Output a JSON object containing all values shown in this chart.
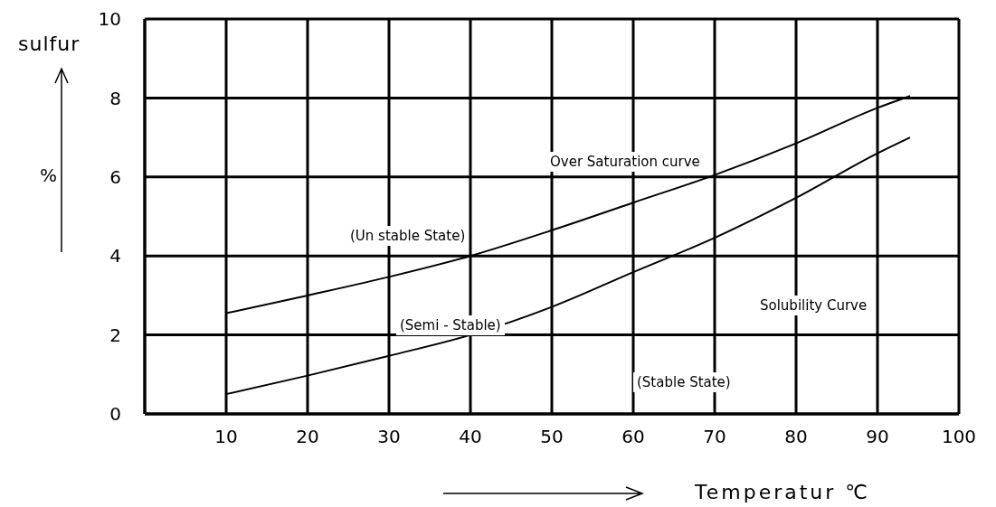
{
  "chart_data": {
    "type": "line",
    "xlabel": "Temperatur ℃",
    "ylabel": "sulfur",
    "x": [
      10,
      20,
      30,
      40,
      50,
      60,
      70,
      80,
      90,
      94
    ],
    "series": [
      {
        "color": "#000000",
        "values": [
          2.55,
          3.0,
          3.47,
          4.0,
          4.65,
          5.35,
          6.05,
          6.85,
          7.75,
          8.05
        ]
      },
      {
        "color": "#000000",
        "values": [
          0.5,
          0.97,
          1.47,
          2.0,
          2.71,
          3.59,
          4.46,
          5.47,
          6.6,
          7.0
        ]
      }
    ],
    "xlim": [
      0,
      100
    ],
    "xticks": [
      10,
      20,
      30,
      40,
      50,
      60,
      70,
      80,
      90,
      100
    ],
    "ylim": [
      0,
      10
    ],
    "yticks": [
      0,
      2,
      4,
      6,
      8,
      10
    ],
    "grid": true,
    "annotations": [
      "%",
      "Over Saturation curve",
      "(Un stable State)",
      "(Semi - Stable)",
      "Solubility Curve",
      "(Stable State)"
    ]
  }
}
